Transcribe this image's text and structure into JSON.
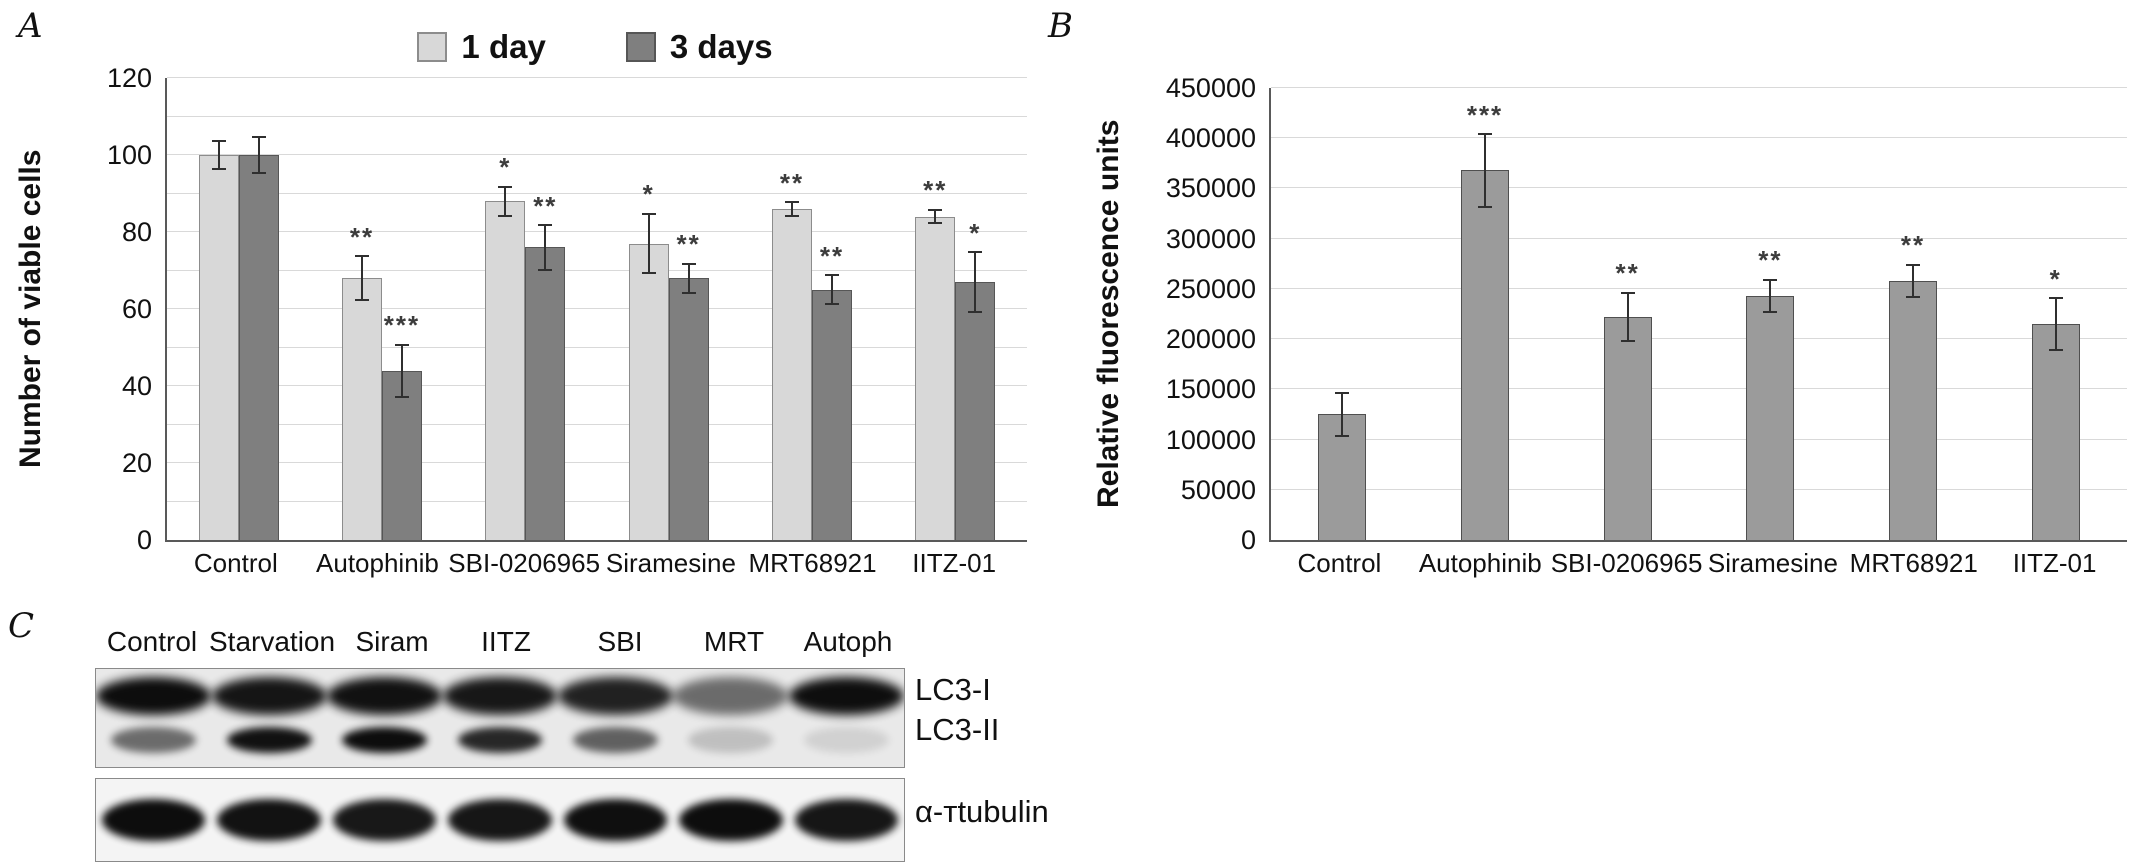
{
  "panels": {
    "a_label": "A",
    "b_label": "B",
    "c_label": "C"
  },
  "chart_data": [
    {
      "type": "bar",
      "panel": "A",
      "title": "",
      "ylabel": "Number of viable cells",
      "xlabel": "",
      "ylim": [
        0,
        120
      ],
      "ytick_step": 20,
      "grid_step": 10,
      "grid": true,
      "legend_position": "top",
      "categories": [
        "Control",
        "Autophinib",
        "SBI-0206965",
        "Siramesine",
        "MRT68921",
        "IITZ-01"
      ],
      "series": [
        {
          "name": "1 day",
          "color": "#d8d8d8",
          "border": "#8c8c8c",
          "values": [
            100,
            68,
            88,
            77,
            86,
            84
          ],
          "errors": [
            4,
            6,
            4,
            8,
            2,
            2
          ],
          "annotations": [
            "",
            "**",
            "*",
            "*",
            "**",
            "**"
          ]
        },
        {
          "name": "3 days",
          "color": "#7f7f7f",
          "border": "#565656",
          "values": [
            100,
            44,
            76,
            68,
            65,
            67
          ],
          "errors": [
            5,
            7,
            6,
            4,
            4,
            8
          ],
          "annotations": [
            "",
            "***",
            "**",
            "**",
            "**",
            "*"
          ]
        }
      ]
    },
    {
      "type": "bar",
      "panel": "B",
      "title": "",
      "ylabel": "Relative fluorescence units",
      "xlabel": "",
      "ylim": [
        0,
        450000
      ],
      "ytick_step": 50000,
      "grid_step": 50000,
      "grid": true,
      "legend_position": "none",
      "categories": [
        "Control",
        "Autophinib",
        "SBI-0206965",
        "Siramesine",
        "MRT68921",
        "IITZ-01"
      ],
      "series": [
        {
          "name": "Relative fluorescence units",
          "color": "#9b9b9b",
          "border": "#4f4f4f",
          "values": [
            125000,
            368000,
            222000,
            243000,
            258000,
            215000
          ],
          "errors": [
            22000,
            37000,
            25000,
            17000,
            17000,
            27000
          ],
          "annotations": [
            "",
            "***",
            "**",
            "**",
            "**",
            "*"
          ]
        }
      ]
    }
  ],
  "western_blot": {
    "lane_labels": [
      "Control",
      "Starvation",
      "Siram",
      "IITZ",
      "SBI",
      "MRT",
      "Autoph"
    ],
    "band_labels": {
      "row1": "LC3-I",
      "row2": "LC3-II",
      "loading": "α-тtubulin"
    },
    "lc3_i_intensity": [
      0.97,
      0.93,
      0.95,
      0.92,
      0.88,
      0.55,
      0.96
    ],
    "lc3_ii_intensity": [
      0.55,
      0.95,
      0.97,
      0.85,
      0.6,
      0.18,
      0.1
    ],
    "tubulin_intensity": [
      0.97,
      0.95,
      0.92,
      0.93,
      0.96,
      0.97,
      0.93
    ]
  }
}
